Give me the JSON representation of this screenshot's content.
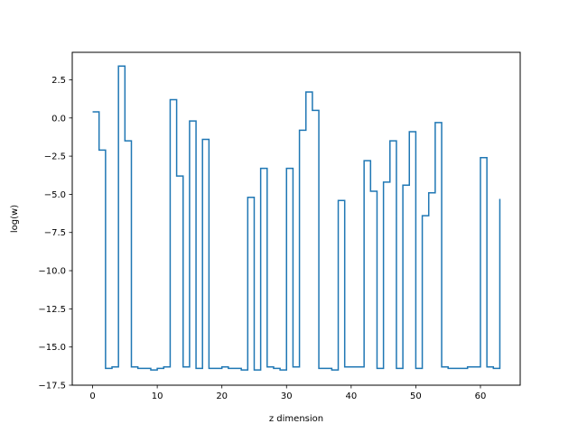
{
  "chart_data": {
    "type": "line",
    "drawstyle": "steps-post",
    "xlabel": "z dimension",
    "ylabel": "log(w)",
    "xlim": [
      -3.15,
      66.15
    ],
    "ylim": [
      -17.5,
      4.3
    ],
    "xticks": [
      0,
      10,
      20,
      30,
      40,
      50,
      60
    ],
    "yticks": [
      -17.5,
      -15.0,
      -12.5,
      -10.0,
      -7.5,
      -5.0,
      -2.5,
      0.0,
      2.5
    ],
    "ytick_labels": [
      "−17.5",
      "−15.0",
      "−12.5",
      "−10.0",
      "−7.5",
      "−5.0",
      "−2.5",
      "0.0",
      "2.5"
    ],
    "xtick_labels": [
      "0",
      "10",
      "20",
      "30",
      "40",
      "50",
      "60"
    ],
    "grid": false,
    "series": [
      {
        "color": "#1f77b4",
        "x": [
          0,
          1,
          2,
          3,
          4,
          5,
          6,
          7,
          8,
          9,
          10,
          11,
          12,
          13,
          14,
          15,
          16,
          17,
          18,
          19,
          20,
          21,
          22,
          23,
          24,
          25,
          26,
          27,
          28,
          29,
          30,
          31,
          32,
          33,
          34,
          35,
          36,
          37,
          38,
          39,
          40,
          41,
          42,
          43,
          44,
          45,
          46,
          47,
          48,
          49,
          50,
          51,
          52,
          53,
          54,
          55,
          56,
          57,
          58,
          59,
          60,
          61,
          62,
          63
        ],
        "y": [
          0.4,
          -2.1,
          -16.4,
          -16.3,
          3.4,
          -1.5,
          -16.3,
          -16.4,
          -16.4,
          -16.5,
          -16.4,
          -16.3,
          1.2,
          -3.8,
          -16.3,
          -0.2,
          -16.4,
          -1.4,
          -16.4,
          -16.4,
          -16.3,
          -16.4,
          -16.4,
          -16.5,
          -5.2,
          -16.5,
          -3.3,
          -16.3,
          -16.4,
          -16.5,
          -3.3,
          -16.3,
          -0.8,
          1.7,
          0.5,
          -16.4,
          -16.4,
          -16.5,
          -5.4,
          -16.3,
          -16.3,
          -16.3,
          -2.8,
          -4.8,
          -16.4,
          -4.2,
          -1.5,
          -16.4,
          -4.4,
          -0.9,
          -16.4,
          -6.4,
          -4.9,
          -0.3,
          -16.3,
          -16.4,
          -16.4,
          -16.4,
          -16.3,
          -16.3,
          -2.6,
          -16.3,
          -16.4,
          -5.3
        ]
      }
    ]
  }
}
